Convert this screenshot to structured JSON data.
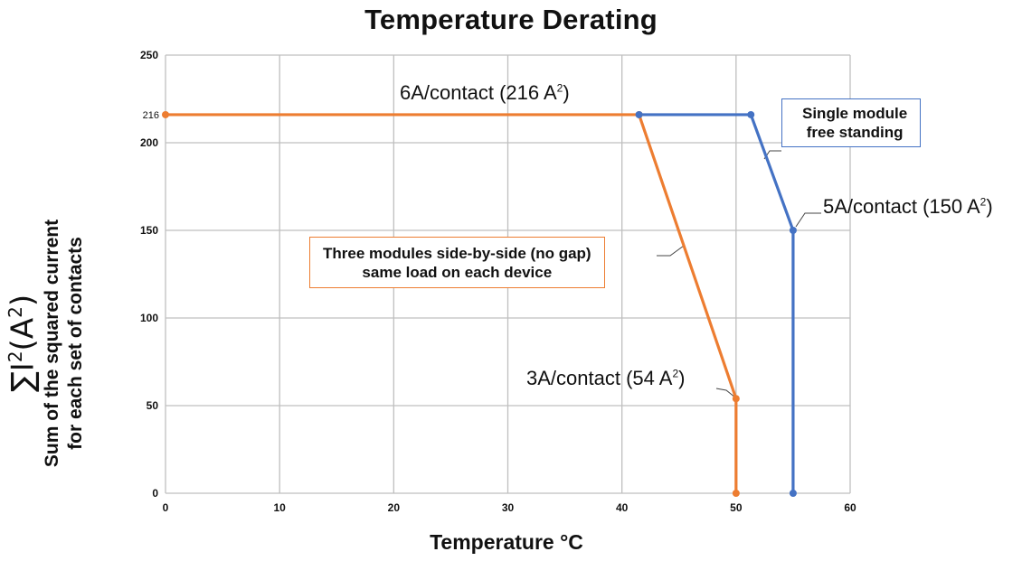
{
  "chart_data": {
    "type": "line",
    "title": "Temperature Derating",
    "xlabel": "Temperature °C",
    "ylabel": {
      "symbol": "∑I",
      "symbol_exp": "2",
      "symbol_unit": "(A",
      "symbol_unit_exp": "2",
      "symbol_close": ")",
      "line1": "Sum of the squared current",
      "line2": "for each set of contacts"
    },
    "xlim": [
      0,
      60
    ],
    "ylim": [
      0,
      250
    ],
    "x_ticks": [
      0,
      10,
      20,
      30,
      40,
      50,
      60
    ],
    "y_ticks": [
      0,
      50,
      100,
      150,
      200,
      250
    ],
    "extra_y_tick": 216,
    "grid": true,
    "series": [
      {
        "color": "#ED7D31",
        "points": [
          [
            0,
            216
          ],
          [
            41.5,
            216
          ],
          [
            50,
            54
          ],
          [
            50,
            0
          ]
        ]
      },
      {
        "color": "#4472C4",
        "points": [
          [
            41.5,
            216
          ],
          [
            51.3,
            216
          ],
          [
            55,
            150
          ],
          [
            55,
            0
          ]
        ]
      }
    ],
    "annotations": {
      "a6": {
        "text": "6A/contact (216 A",
        "exp": "2",
        "close": ")"
      },
      "a5": {
        "text": "5A/contact (150 A",
        "exp": "2",
        "close": ")"
      },
      "a3": {
        "text": "3A/contact (54 A",
        "exp": "2",
        "close": ")"
      },
      "box_orange": {
        "line1": "Three modules side-by-side (no gap)",
        "line2": "same load on each device"
      },
      "box_blue": {
        "line1": "Single module",
        "line2": "free standing"
      }
    }
  }
}
